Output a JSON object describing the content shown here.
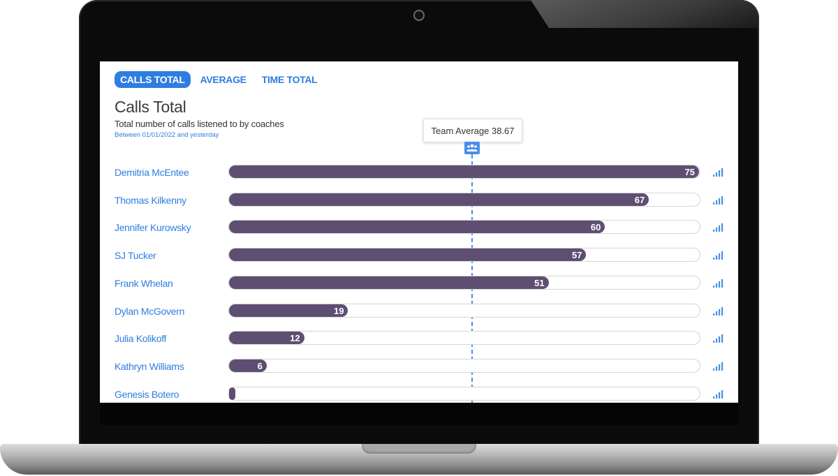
{
  "tabs": [
    {
      "label": "CALLS TOTAL",
      "active": true
    },
    {
      "label": "AVERAGE",
      "active": false
    },
    {
      "label": "TIME TOTAL",
      "active": false
    }
  ],
  "header": {
    "title": "Calls Total",
    "subtitle": "Total number of calls listened to by coaches",
    "date_range": "Between 01/01/2022 and yesterday"
  },
  "team_average": {
    "label": "Team Average 38.67",
    "value": 38.67,
    "icon": "team-icon"
  },
  "chart_data": {
    "type": "bar",
    "orientation": "horizontal",
    "categories": [
      "Demitria McEntee",
      "Thomas Kilkenny",
      "Jennifer Kurowsky",
      "SJ Tucker",
      "Frank Whelan",
      "Dylan McGovern",
      "Julia Kolikoff",
      "Kathryn Williams",
      "Genesis Botero"
    ],
    "values": [
      75,
      67,
      60,
      57,
      51,
      19,
      12,
      6,
      1
    ],
    "value_labels": [
      "75",
      "67",
      "60",
      "57",
      "51",
      "19",
      "12",
      "6",
      ""
    ],
    "xlim": [
      0,
      75
    ],
    "reference_line": 38.67
  },
  "colors": {
    "accent": "#2f7de1",
    "bar": "#5e4f72",
    "track_border": "#d5d5d5"
  },
  "row_icon": "bar-signal-icon"
}
